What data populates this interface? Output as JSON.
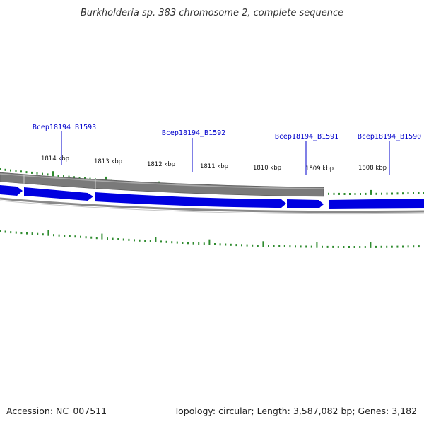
{
  "title": "Burkholderia sp. 383 chromosome 2, complete sequence",
  "accession": "Accession: NC_007511",
  "summary": "Topology: circular; Length: 3,587,082 bp; Genes: 3,182",
  "kbp_labels": [
    "1814 kbp",
    "1813 kbp",
    "1812 kbp",
    "1811 kbp",
    "1810 kbp",
    "1809 kbp",
    "1808 kbp"
  ],
  "genes": [
    "Bcep18194_B1593",
    "Bcep18194_B1592",
    "Bcep18194_B1591",
    "Bcep18194_B1590"
  ],
  "colors": {
    "gene_blue": "#0000e0",
    "gene_band_grey": "#777777",
    "backbone_grey": "#888888",
    "tick_green": "#2e8b2e",
    "label_blue": "#0000cc"
  }
}
